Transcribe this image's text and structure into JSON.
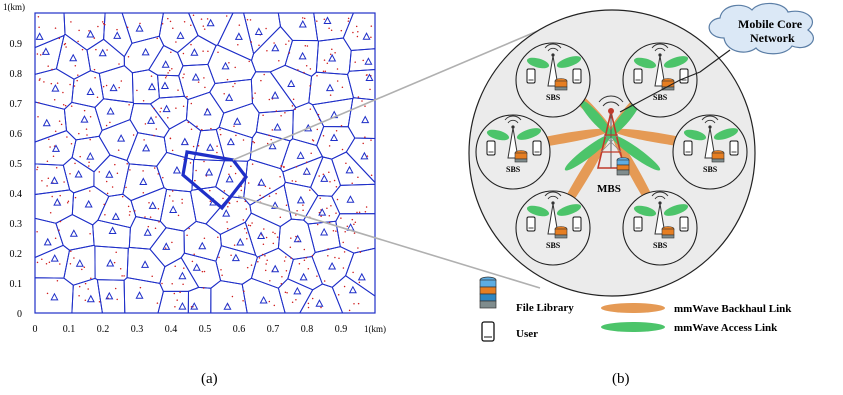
{
  "panel_a": {
    "x_ticks": [
      "0",
      "0.1",
      "0.2",
      "0.3",
      "0.4",
      "0.5",
      "0.6",
      "0.7",
      "0.8",
      "0.9"
    ],
    "y_ticks": [
      "0",
      "0.1",
      "0.2",
      "0.3",
      "0.4",
      "0.5",
      "0.6",
      "0.7",
      "0.8",
      "0.9"
    ],
    "x_unit": "1(km)",
    "y_unit": "1(km)",
    "caption": "(a)"
  },
  "panel_b": {
    "cloud_label_line1": "Mobile Core",
    "cloud_label_line2": "Network",
    "mbs_label": "MBS",
    "sbs_label": "SBS",
    "legend": {
      "file_library": "File Library",
      "user": "User",
      "backhaul": "mmWave Backhaul Link",
      "access": "mmWave Access Link"
    },
    "caption": "(b)"
  },
  "colors": {
    "voronoi": "#1f2fc8",
    "user_dot": "#d01c1c",
    "backhaul": "#e59a55",
    "access": "#4cc46a",
    "cloud": "#dbe8f6"
  }
}
